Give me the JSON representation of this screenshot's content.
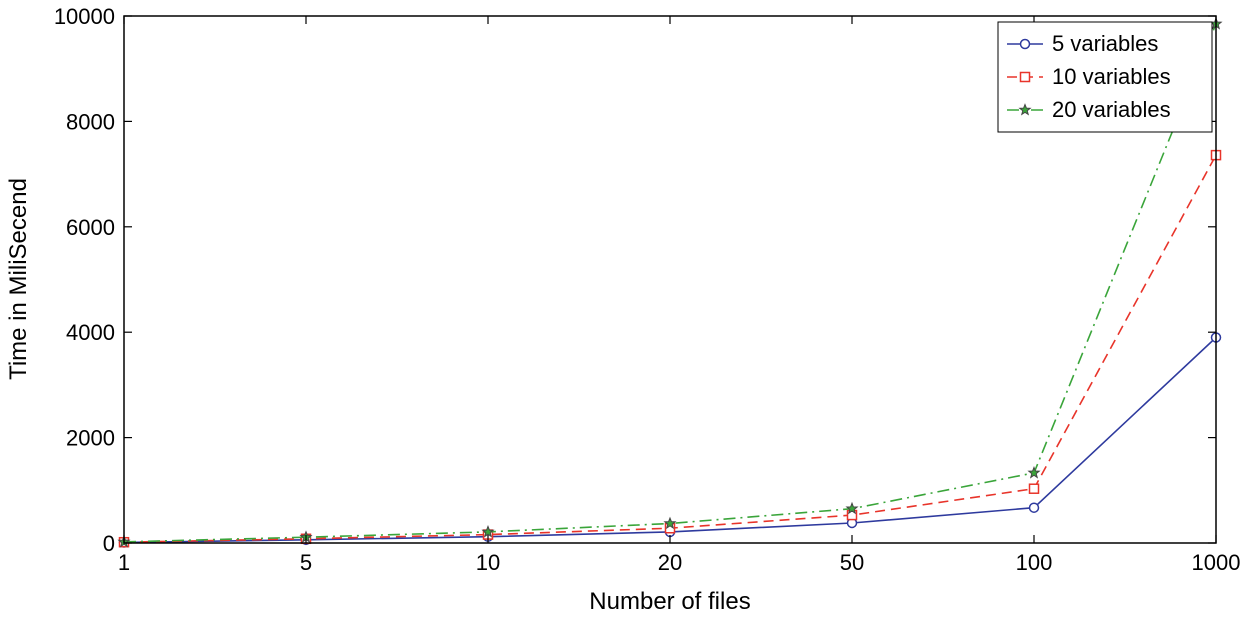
{
  "chart_data": {
    "type": "line",
    "title": "",
    "xlabel": "Number of files",
    "ylabel": "Time in MiliSecend",
    "categories": [
      "1",
      "5",
      "10",
      "20",
      "50",
      "100",
      "1000"
    ],
    "ylim": [
      0,
      10000
    ],
    "yticks": [
      0,
      2000,
      4000,
      6000,
      8000,
      10000
    ],
    "grid": false,
    "legend_position": "top-right",
    "series": [
      {
        "name": "5 variables",
        "color": "#2e3a9e",
        "line_style": "solid",
        "marker": "circle",
        "values": [
          10,
          60,
          120,
          210,
          380,
          670,
          3900
        ]
      },
      {
        "name": "10 variables",
        "color": "#e8342a",
        "line_style": "dashed",
        "marker": "square",
        "values": [
          15,
          80,
          160,
          280,
          530,
          1030,
          7360
        ]
      },
      {
        "name": "20 variables",
        "color": "#3aa53a",
        "line_style": "dash-dot",
        "marker": "star",
        "values": [
          20,
          110,
          210,
          370,
          650,
          1330,
          9850
        ]
      }
    ]
  }
}
